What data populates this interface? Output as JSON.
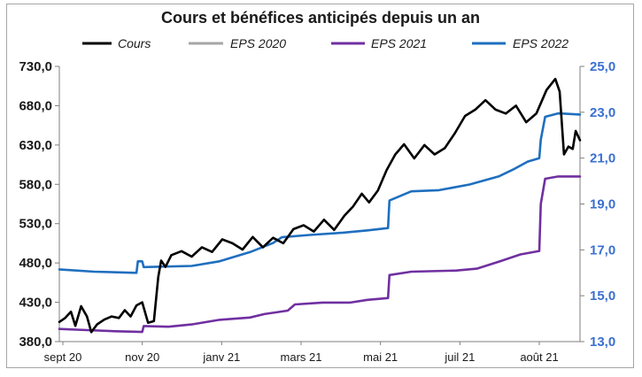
{
  "chart_data": {
    "type": "line",
    "title": "Cours et bénéfices anticipés depuis un an",
    "x_tick_labels": [
      "sept 20",
      "nov 20",
      "janv 21",
      "mars 21",
      "mai 21",
      "juil 21",
      "août 21"
    ],
    "x_range": [
      "2020-09-01",
      "2021-08-25"
    ],
    "y_left": {
      "ticks": [
        "730,0",
        "680,0",
        "630,0",
        "580,0",
        "530,0",
        "480,0",
        "430,0",
        "380,0"
      ],
      "range": [
        380,
        730
      ]
    },
    "y_right": {
      "ticks": [
        "25,0",
        "23,0",
        "21,0",
        "19,0",
        "17,0",
        "15,0",
        "13,0"
      ],
      "range": [
        13,
        25
      ]
    },
    "grid": false,
    "legend_position": "top",
    "colors": {
      "Cours": "#000000",
      "EPS 2020": "#a6a6a6",
      "EPS 2021": "#7030a0",
      "EPS 2022": "#1f6fbf"
    },
    "series": [
      {
        "name": "Cours",
        "axis": "left",
        "points": [
          [
            "2020-09-01",
            405
          ],
          [
            "2020-09-05",
            410
          ],
          [
            "2020-09-09",
            418
          ],
          [
            "2020-09-12",
            400
          ],
          [
            "2020-09-16",
            425
          ],
          [
            "2020-09-20",
            412
          ],
          [
            "2020-09-23",
            392
          ],
          [
            "2020-09-27",
            402
          ],
          [
            "2020-10-02",
            408
          ],
          [
            "2020-10-07",
            412
          ],
          [
            "2020-10-12",
            410
          ],
          [
            "2020-10-16",
            420
          ],
          [
            "2020-10-20",
            412
          ],
          [
            "2020-10-24",
            426
          ],
          [
            "2020-10-28",
            430
          ],
          [
            "2020-11-01",
            404
          ],
          [
            "2020-11-05",
            406
          ],
          [
            "2020-11-08",
            462
          ],
          [
            "2020-11-10",
            483
          ],
          [
            "2020-11-13",
            475
          ],
          [
            "2020-11-17",
            490
          ],
          [
            "2020-11-24",
            495
          ],
          [
            "2020-12-01",
            488
          ],
          [
            "2020-12-08",
            500
          ],
          [
            "2020-12-15",
            494
          ],
          [
            "2020-12-22",
            510
          ],
          [
            "2020-12-29",
            505
          ],
          [
            "2021-01-05",
            497
          ],
          [
            "2021-01-12",
            513
          ],
          [
            "2021-01-19",
            500
          ],
          [
            "2021-01-26",
            512
          ],
          [
            "2021-02-02",
            505
          ],
          [
            "2021-02-09",
            523
          ],
          [
            "2021-02-16",
            528
          ],
          [
            "2021-02-23",
            520
          ],
          [
            "2021-03-02",
            535
          ],
          [
            "2021-03-09",
            522
          ],
          [
            "2021-03-16",
            540
          ],
          [
            "2021-03-22",
            552
          ],
          [
            "2021-03-28",
            568
          ],
          [
            "2021-04-02",
            557
          ],
          [
            "2021-04-08",
            572
          ],
          [
            "2021-04-14",
            598
          ],
          [
            "2021-04-20",
            618
          ],
          [
            "2021-04-26",
            631
          ],
          [
            "2021-05-03",
            613
          ],
          [
            "2021-05-10",
            630
          ],
          [
            "2021-05-17",
            618
          ],
          [
            "2021-05-24",
            626
          ],
          [
            "2021-05-31",
            645
          ],
          [
            "2021-06-07",
            667
          ],
          [
            "2021-06-14",
            675
          ],
          [
            "2021-06-21",
            687
          ],
          [
            "2021-06-28",
            675
          ],
          [
            "2021-07-05",
            670
          ],
          [
            "2021-07-12",
            680
          ],
          [
            "2021-07-19",
            659
          ],
          [
            "2021-07-26",
            670
          ],
          [
            "2021-08-02",
            700
          ],
          [
            "2021-08-08",
            714
          ],
          [
            "2021-08-11",
            698
          ],
          [
            "2021-08-14",
            618
          ],
          [
            "2021-08-17",
            628
          ],
          [
            "2021-08-20",
            625
          ],
          [
            "2021-08-22",
            648
          ],
          [
            "2021-08-25",
            636
          ]
        ]
      },
      {
        "name": "EPS 2021",
        "axis": "right",
        "points": [
          [
            "2020-09-01",
            13.55
          ],
          [
            "2020-09-20",
            13.5
          ],
          [
            "2020-10-10",
            13.45
          ],
          [
            "2020-10-28",
            13.42
          ],
          [
            "2020-10-29",
            13.68
          ],
          [
            "2020-11-15",
            13.65
          ],
          [
            "2020-12-01",
            13.75
          ],
          [
            "2020-12-20",
            13.95
          ],
          [
            "2021-01-10",
            14.05
          ],
          [
            "2021-01-20",
            14.2
          ],
          [
            "2021-02-05",
            14.35
          ],
          [
            "2021-02-10",
            14.62
          ],
          [
            "2021-03-01",
            14.7
          ],
          [
            "2021-03-20",
            14.7
          ],
          [
            "2021-04-01",
            14.82
          ],
          [
            "2021-04-15",
            14.9
          ],
          [
            "2021-04-16",
            15.9
          ],
          [
            "2021-05-01",
            16.05
          ],
          [
            "2021-06-01",
            16.1
          ],
          [
            "2021-06-15",
            16.18
          ],
          [
            "2021-07-01",
            16.5
          ],
          [
            "2021-07-15",
            16.8
          ],
          [
            "2021-07-28",
            16.95
          ],
          [
            "2021-07-29",
            19.0
          ],
          [
            "2021-08-01",
            20.1
          ],
          [
            "2021-08-10",
            20.2
          ],
          [
            "2021-08-25",
            20.2
          ]
        ]
      },
      {
        "name": "EPS 2022",
        "axis": "right",
        "points": [
          [
            "2020-09-01",
            16.15
          ],
          [
            "2020-09-25",
            16.05
          ],
          [
            "2020-10-24",
            16.0
          ],
          [
            "2020-10-25",
            16.5
          ],
          [
            "2020-10-28",
            16.5
          ],
          [
            "2020-10-29",
            16.25
          ],
          [
            "2020-12-01",
            16.3
          ],
          [
            "2020-12-20",
            16.5
          ],
          [
            "2021-01-10",
            16.9
          ],
          [
            "2021-01-26",
            17.3
          ],
          [
            "2021-02-01",
            17.55
          ],
          [
            "2021-02-20",
            17.65
          ],
          [
            "2021-03-15",
            17.75
          ],
          [
            "2021-04-01",
            17.85
          ],
          [
            "2021-04-15",
            17.95
          ],
          [
            "2021-04-16",
            19.15
          ],
          [
            "2021-05-01",
            19.55
          ],
          [
            "2021-05-20",
            19.6
          ],
          [
            "2021-06-10",
            19.85
          ],
          [
            "2021-06-30",
            20.2
          ],
          [
            "2021-07-10",
            20.5
          ],
          [
            "2021-07-20",
            20.85
          ],
          [
            "2021-07-28",
            21.0
          ],
          [
            "2021-07-29",
            21.8
          ],
          [
            "2021-08-01",
            22.8
          ],
          [
            "2021-08-10",
            22.95
          ],
          [
            "2021-08-25",
            22.9
          ]
        ]
      }
    ]
  }
}
